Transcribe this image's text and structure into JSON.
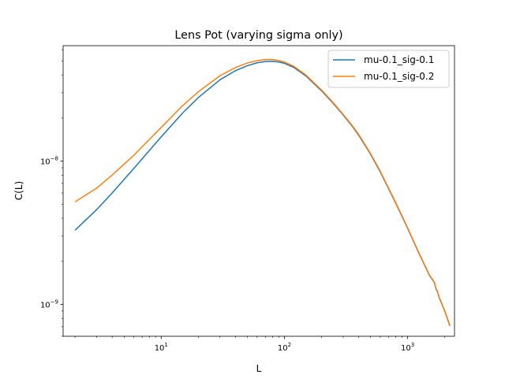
{
  "chart_data": {
    "type": "line",
    "title": "Lens Pot (varying sigma only)",
    "xlabel": "L",
    "ylabel": "C(L)",
    "xscale": "log",
    "yscale": "log",
    "xlim": [
      1.6,
      2400
    ],
    "ylim": [
      6e-10,
      6.4e-08
    ],
    "xticks": [
      {
        "value": 10,
        "base": "10",
        "exp": "1"
      },
      {
        "value": 100,
        "base": "10",
        "exp": "2"
      },
      {
        "value": 1000,
        "base": "10",
        "exp": "3"
      }
    ],
    "yticks": [
      {
        "value": 1e-09,
        "base": "10",
        "exp": "−9"
      },
      {
        "value": 1e-08,
        "base": "10",
        "exp": "−8"
      }
    ],
    "legend_position": "top-right",
    "grid": false,
    "series": [
      {
        "name": "mu-0.1_sig-0.1",
        "color": "#1f77b4",
        "x": [
          2,
          3,
          4,
          6,
          10,
          15,
          20,
          30,
          40,
          50,
          60,
          70,
          80,
          90,
          100,
          120,
          150,
          200,
          250,
          300,
          350,
          400,
          500,
          600,
          800,
          1000,
          1200,
          1500,
          1650,
          1700,
          1750,
          1800,
          2000,
          2200
        ],
        "y": [
          3.3e-09,
          4.6e-09,
          6e-09,
          8.9e-09,
          1.48e-08,
          2.18e-08,
          2.78e-08,
          3.7e-08,
          4.28e-08,
          4.64e-08,
          4.86e-08,
          4.96e-08,
          4.98e-08,
          4.92e-08,
          4.82e-08,
          4.5e-08,
          3.92e-08,
          3.1e-08,
          2.52e-08,
          2.1e-08,
          1.78e-08,
          1.52e-08,
          1.12e-08,
          8.4e-09,
          5.1e-09,
          3.4e-09,
          2.4e-09,
          1.6e-09,
          1.42e-09,
          1.28e-09,
          1.22e-09,
          1.12e-09,
          9e-10,
          7.1e-10
        ]
      },
      {
        "name": "mu-0.1_sig-0.2",
        "color": "#ff7f0e",
        "x": [
          2,
          3,
          4,
          6,
          10,
          15,
          20,
          30,
          40,
          50,
          60,
          70,
          80,
          90,
          100,
          120,
          150,
          200,
          250,
          300,
          350,
          400,
          500,
          600,
          800,
          1000,
          1200,
          1500,
          1650,
          1700,
          1750,
          1800,
          2000,
          2200
        ],
        "y": [
          5.2e-09,
          6.5e-09,
          8e-09,
          1.1e-08,
          1.72e-08,
          2.45e-08,
          3.05e-08,
          3.95e-08,
          4.5e-08,
          4.84e-08,
          5.03e-08,
          5.12e-08,
          5.12e-08,
          5.04e-08,
          4.92e-08,
          4.58e-08,
          3.98e-08,
          3.14e-08,
          2.55e-08,
          2.12e-08,
          1.8e-08,
          1.54e-08,
          1.13e-08,
          8.5e-09,
          5.15e-09,
          3.42e-09,
          2.42e-09,
          1.61e-09,
          1.43e-09,
          1.29e-09,
          1.23e-09,
          1.13e-09,
          9.05e-10,
          7.15e-10
        ]
      }
    ]
  }
}
